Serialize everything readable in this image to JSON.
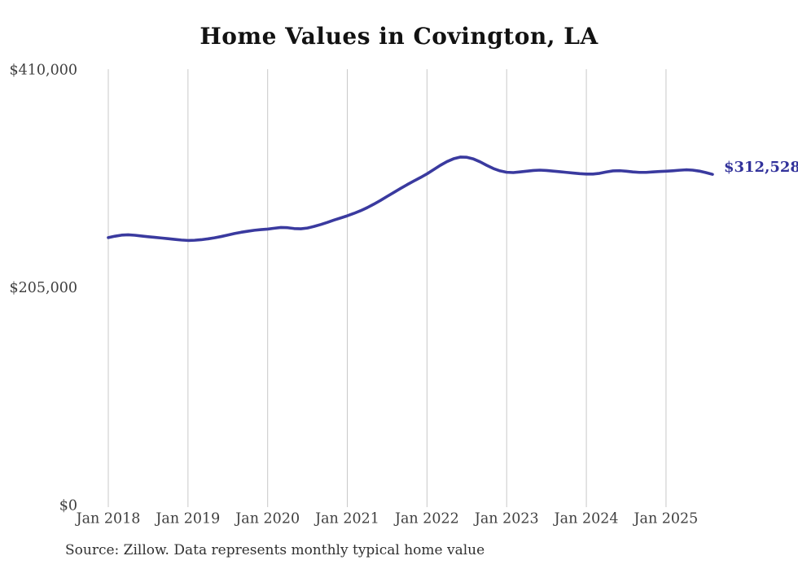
{
  "chart_data": {
    "type": "line",
    "title": "Home Values in Covington, LA",
    "source": "Source: Zillow. Data represents monthly typical home value",
    "unit": "USD",
    "frequency": "monthly",
    "start_month": "2018-01",
    "end_month": "2025-08",
    "ylim": [
      0,
      410000
    ],
    "grid": "vertical-only",
    "end_label": "$312,528",
    "end_value": 312528,
    "y_ticks": [
      {
        "label": "$410,000",
        "value": 410000
      },
      {
        "label": "$205,000",
        "value": 205000
      },
      {
        "label": "$0",
        "value": 0
      }
    ],
    "x_ticks": [
      {
        "label": "Jan 2018",
        "month_index": 0
      },
      {
        "label": "Jan 2019",
        "month_index": 12
      },
      {
        "label": "Jan 2020",
        "month_index": 24
      },
      {
        "label": "Jan 2021",
        "month_index": 36
      },
      {
        "label": "Jan 2022",
        "month_index": 48
      },
      {
        "label": "Jan 2023",
        "month_index": 60
      },
      {
        "label": "Jan 2024",
        "month_index": 72
      },
      {
        "label": "Jan 2025",
        "month_index": 84
      }
    ],
    "series": [
      {
        "name": "Typical home value",
        "values": [
          253000,
          254300,
          255300,
          255600,
          255200,
          254500,
          253800,
          253200,
          252600,
          252000,
          251300,
          250700,
          250300,
          250500,
          251000,
          251800,
          252800,
          254000,
          255400,
          256800,
          258000,
          259000,
          259900,
          260500,
          261000,
          261800,
          262500,
          262300,
          261500,
          261300,
          262000,
          263500,
          265300,
          267300,
          269500,
          271500,
          273500,
          275800,
          278300,
          281200,
          284500,
          288000,
          291800,
          295500,
          299200,
          302800,
          306200,
          309500,
          313000,
          317000,
          321000,
          324500,
          327200,
          328800,
          328600,
          327000,
          324300,
          321000,
          318000,
          315800,
          314500,
          314200,
          314800,
          315500,
          316200,
          316500,
          316200,
          315600,
          315000,
          314400,
          313800,
          313200,
          312800,
          312800,
          313500,
          314800,
          315800,
          316000,
          315500,
          314800,
          314400,
          314400,
          314800,
          315200,
          315500,
          315900,
          316400,
          316800,
          316500,
          315600,
          314200,
          312528
        ]
      }
    ],
    "colors": {
      "line": "#3a3a9f",
      "end_label": "#32329b",
      "grid": "#c9c9c9",
      "axis_text": "#404040",
      "title_text": "#121212",
      "source_text": "#303030",
      "background": "#ffffff"
    }
  }
}
